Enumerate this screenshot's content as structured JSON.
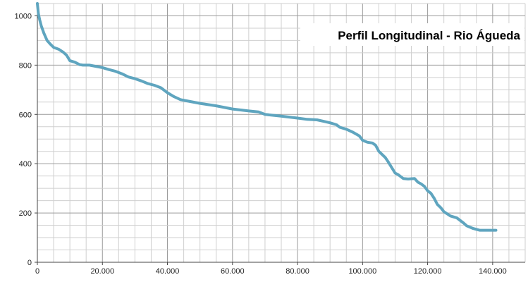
{
  "chart_data": {
    "type": "line",
    "title": "Perfil Longitudinal - Rio Águeda",
    "xlabel": "",
    "ylabel": "",
    "xlim": [
      0,
      150000
    ],
    "ylim": [
      0,
      1050
    ],
    "x_ticks": [
      0,
      20000,
      40000,
      60000,
      80000,
      100000,
      120000,
      140000
    ],
    "x_tick_labels": [
      "0",
      "20.000",
      "40.000",
      "60.000",
      "80.000",
      "100.000",
      "120.000",
      "140.000"
    ],
    "y_ticks": [
      0,
      200,
      400,
      600,
      800,
      1000
    ],
    "y_tick_labels": [
      "0",
      "200",
      "400",
      "600",
      "800",
      "1000"
    ],
    "grid": true,
    "legend": "none",
    "series": [
      {
        "color": "#5fa5bf",
        "points": [
          [
            0,
            1050
          ],
          [
            300,
            1010
          ],
          [
            700,
            985
          ],
          [
            1200,
            960
          ],
          [
            2000,
            930
          ],
          [
            3000,
            900
          ],
          [
            4000,
            885
          ],
          [
            5000,
            872
          ],
          [
            6500,
            865
          ],
          [
            8000,
            852
          ],
          [
            9000,
            840
          ],
          [
            10000,
            818
          ],
          [
            11500,
            812
          ],
          [
            13000,
            802
          ],
          [
            14000,
            800
          ],
          [
            16000,
            800
          ],
          [
            18000,
            795
          ],
          [
            20000,
            790
          ],
          [
            22000,
            782
          ],
          [
            24000,
            775
          ],
          [
            26000,
            765
          ],
          [
            28000,
            752
          ],
          [
            30000,
            745
          ],
          [
            32000,
            736
          ],
          [
            34000,
            725
          ],
          [
            36000,
            718
          ],
          [
            38000,
            708
          ],
          [
            40000,
            688
          ],
          [
            42000,
            672
          ],
          [
            44000,
            660
          ],
          [
            46000,
            655
          ],
          [
            50000,
            645
          ],
          [
            55000,
            635
          ],
          [
            60000,
            622
          ],
          [
            65000,
            614
          ],
          [
            68000,
            610
          ],
          [
            70000,
            600
          ],
          [
            75000,
            593
          ],
          [
            80000,
            585
          ],
          [
            83000,
            580
          ],
          [
            86000,
            578
          ],
          [
            88000,
            572
          ],
          [
            90000,
            566
          ],
          [
            92000,
            558
          ],
          [
            93000,
            548
          ],
          [
            95000,
            540
          ],
          [
            97000,
            528
          ],
          [
            99000,
            513
          ],
          [
            100000,
            495
          ],
          [
            101500,
            487
          ],
          [
            103000,
            484
          ],
          [
            104000,
            475
          ],
          [
            105000,
            450
          ],
          [
            107000,
            425
          ],
          [
            108000,
            405
          ],
          [
            110000,
            362
          ],
          [
            111000,
            355
          ],
          [
            112500,
            340
          ],
          [
            114000,
            338
          ],
          [
            116000,
            340
          ],
          [
            117000,
            325
          ],
          [
            118000,
            318
          ],
          [
            119000,
            308
          ],
          [
            120000,
            290
          ],
          [
            121000,
            280
          ],
          [
            122000,
            260
          ],
          [
            123000,
            235
          ],
          [
            124000,
            222
          ],
          [
            125000,
            205
          ],
          [
            127000,
            188
          ],
          [
            129000,
            180
          ],
          [
            130000,
            170
          ],
          [
            131000,
            160
          ],
          [
            132000,
            148
          ],
          [
            134000,
            137
          ],
          [
            136000,
            130
          ],
          [
            138000,
            130
          ],
          [
            141000,
            130
          ]
        ]
      }
    ]
  }
}
